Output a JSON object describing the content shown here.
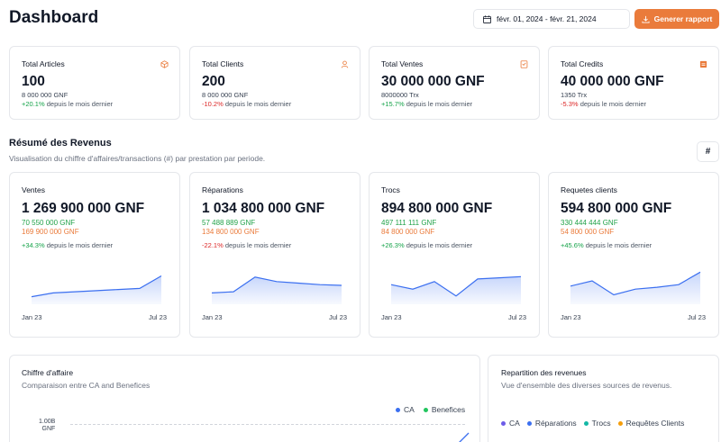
{
  "header": {
    "title": "Dashboard",
    "date_range": "févr. 01, 2024 - févr. 21, 2024",
    "generate_label": "Generer rapport"
  },
  "stats": [
    {
      "title": "Total Articles",
      "value": "100",
      "sub": "8 000 000 GNF",
      "change": "+20.1%",
      "change_suffix": "depuis le mois dernier",
      "icon": "package-icon"
    },
    {
      "title": "Total Clients",
      "value": "200",
      "sub": "8 000 000 GNF",
      "change": "-10.2%",
      "change_suffix": "depuis le mois dernier",
      "icon": "user-icon"
    },
    {
      "title": "Total Ventes",
      "value": "30 000 000 GNF",
      "sub": "8000000 Trx",
      "change": "+15.7%",
      "change_suffix": "depuis le mois dernier",
      "icon": "receipt-icon"
    },
    {
      "title": "Total Credits",
      "value": "40 000 000 GNF",
      "sub": "1350 Trx",
      "change": "-5.3%",
      "change_suffix": "depuis le mois dernier",
      "icon": "credit-icon"
    }
  ],
  "revenue_section": {
    "title": "Résumé des Revenus",
    "subtitle": "Visualisation du chiffre d'affaires/transactions (#) par prestation par periode.",
    "toggle_label": "#"
  },
  "revenue_cards": [
    {
      "title": "Ventes",
      "value": "1 269 900 000 GNF",
      "green": "70 550 000 GNF",
      "orange": "169 900 000 GNF",
      "change": "+34.3%",
      "change_suffix": "depuis le mois dernier",
      "x_start": "Jan 23",
      "x_end": "Jul 23"
    },
    {
      "title": "Réparations",
      "value": "1 034 800 000 GNF",
      "green": "57 488 889 GNF",
      "orange": "134 800 000 GNF",
      "change": "-22.1%",
      "change_suffix": "depuis le mois dernier",
      "x_start": "Jan 23",
      "x_end": "Jul 23"
    },
    {
      "title": "Trocs",
      "value": "894 800 000 GNF",
      "green": "497 111 111 GNF",
      "orange": "84 800 000 GNF",
      "change": "+26.3%",
      "change_suffix": "depuis le mois dernier",
      "x_start": "Jan 23",
      "x_end": "Jul 23"
    },
    {
      "title": "Requetes clients",
      "value": "594 800 000 GNF",
      "green": "330 444 444 GNF",
      "orange": "54 800 000 GNF",
      "change": "+45.6%",
      "change_suffix": "depuis le mois dernier",
      "x_start": "Jan 23",
      "x_end": "Jul 23"
    }
  ],
  "ca_chart": {
    "title": "Chiffre d'affaire",
    "subtitle": "Comparaison entre CA and Benefices",
    "legend": [
      {
        "name": "CA",
        "color": "#3b6ff0"
      },
      {
        "name": "Benefices",
        "color": "#22c55e"
      }
    ],
    "y_tick_top": "1.00B",
    "y_tick_bottom": "GNF"
  },
  "repartition": {
    "title": "Repartition des revenues",
    "subtitle": "Vue d'ensemble des diverses sources de revenus.",
    "legend": [
      {
        "name": "CA",
        "color": "#6d5ce8"
      },
      {
        "name": "Réparations",
        "color": "#3b6ff0"
      },
      {
        "name": "Trocs",
        "color": "#14b8a6"
      },
      {
        "name": "Requêtes Clients",
        "color": "#f59e0b"
      }
    ]
  },
  "chart_data": [
    {
      "type": "area",
      "title": "",
      "categories": [
        "Jan 23",
        "",
        "",
        "",
        "",
        "",
        "Jul 23"
      ],
      "values": [
        20,
        30,
        33,
        36,
        39,
        42,
        75
      ],
      "ylim": [
        0,
        100
      ]
    },
    {
      "type": "area",
      "title": "",
      "categories": [
        "Jan 23",
        "",
        "",
        "",
        "",
        "",
        "Jul 23"
      ],
      "values": [
        30,
        33,
        72,
        60,
        56,
        52,
        50
      ],
      "ylim": [
        0,
        100
      ]
    },
    {
      "type": "area",
      "title": "",
      "categories": [
        "Jan 23",
        "",
        "",
        "",
        "",
        "",
        "Jul 23"
      ],
      "values": [
        52,
        40,
        60,
        22,
        67,
        70,
        73
      ],
      "ylim": [
        0,
        100
      ]
    },
    {
      "type": "area",
      "title": "",
      "categories": [
        "Jan 23",
        "",
        "",
        "",
        "",
        "",
        "Jul 23"
      ],
      "values": [
        48,
        62,
        25,
        40,
        45,
        52,
        85
      ],
      "ylim": [
        0,
        100
      ]
    }
  ]
}
